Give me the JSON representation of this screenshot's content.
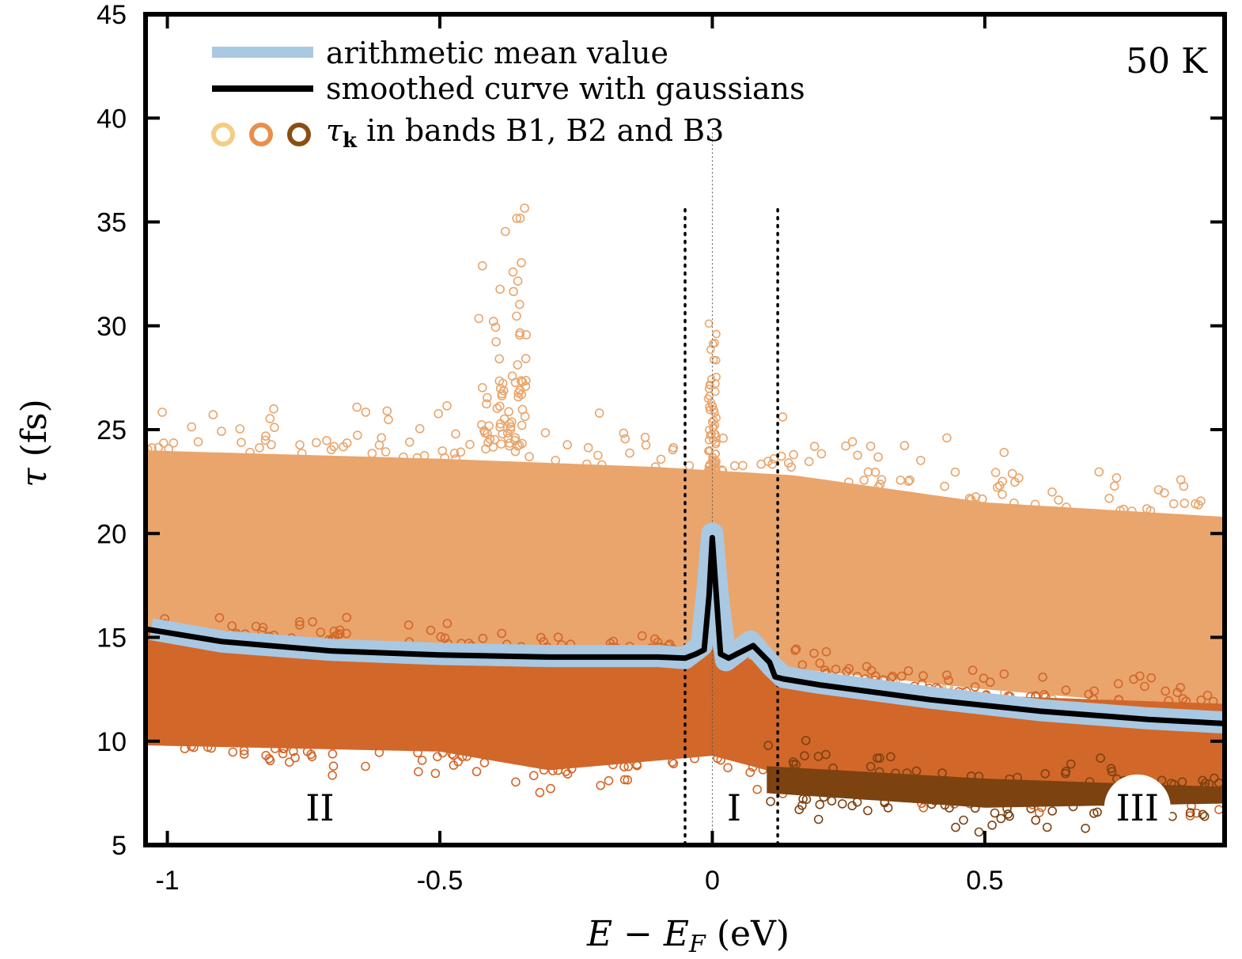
{
  "chart_data": {
    "type": "scatter",
    "title": "",
    "annotation_temperature": "50 K",
    "xlabel": "E − E",
    "xlabel_subscript": "F",
    "xlabel_unit": "(eV)",
    "ylabel": "τ",
    "ylabel_unit": "(fs)",
    "xlim": [
      -1.04,
      0.94
    ],
    "ylim": [
      5,
      45
    ],
    "xticks": [
      -1,
      -0.5,
      0,
      0.5
    ],
    "xtick_labels": [
      "-1",
      "-0.5",
      "0",
      "0.5"
    ],
    "yticks": [
      5,
      10,
      15,
      20,
      25,
      30,
      35,
      40,
      45
    ],
    "ytick_labels": [
      "5",
      "10",
      "15",
      "20",
      "25",
      "30",
      "35",
      "40",
      "45"
    ],
    "region_boundaries": [
      -0.05,
      0.12
    ],
    "fermi_line": 0,
    "regions": [
      {
        "label": "II",
        "x": -0.72,
        "y": 6.8
      },
      {
        "label": "I",
        "x": 0.04,
        "y": 6.8
      },
      {
        "label": "III",
        "x": 0.78,
        "y": 6.8
      }
    ],
    "legend": [
      {
        "key": "mean",
        "label": "arithmetic mean value",
        "color": "#a9c8e2"
      },
      {
        "key": "smooth",
        "label": "smoothed curve with gaussians",
        "color": "#000000"
      },
      {
        "key": "bands",
        "label_symbol": "τ",
        "label_sub": "k",
        "label": " in bands B1, B2 and B3",
        "colors": [
          "#f2cd82",
          "#e98f4d",
          "#8a4e12"
        ]
      }
    ],
    "series": [
      {
        "name": "τ_k band B1",
        "color": "#e9a56c",
        "band_upper": [
          [
            -1.04,
            24.0
          ],
          [
            -0.5,
            23.6
          ],
          [
            -0.1,
            23.2
          ],
          [
            0.15,
            22.8
          ],
          [
            0.5,
            21.5
          ],
          [
            0.94,
            20.8
          ]
        ],
        "band_lower": [
          [
            -1.04,
            14.8
          ],
          [
            -0.5,
            14.6
          ],
          [
            0.0,
            14.2
          ],
          [
            0.15,
            13.5
          ],
          [
            0.5,
            12.5
          ],
          [
            0.94,
            11.5
          ]
        ]
      },
      {
        "name": "τ_k band B2",
        "color": "#d2672a",
        "band_upper": [
          [
            -1.04,
            15.3
          ],
          [
            -0.5,
            14.6
          ],
          [
            0.0,
            14.4
          ],
          [
            0.15,
            13.4
          ],
          [
            0.5,
            12.2
          ],
          [
            0.94,
            11.8
          ]
        ],
        "band_lower": [
          [
            -1.04,
            9.8
          ],
          [
            -0.5,
            9.5
          ],
          [
            -0.3,
            8.6
          ],
          [
            0.0,
            9.3
          ],
          [
            0.1,
            8.6
          ],
          [
            0.5,
            7.6
          ],
          [
            0.94,
            7.4
          ]
        ]
      },
      {
        "name": "τ_k band B3",
        "color": "#7c4210",
        "band_upper": [
          [
            0.1,
            8.8
          ],
          [
            0.5,
            8.2
          ],
          [
            0.94,
            7.8
          ]
        ],
        "band_lower": [
          [
            0.1,
            7.5
          ],
          [
            0.5,
            6.8
          ],
          [
            0.94,
            7.0
          ]
        ]
      },
      {
        "name": "arithmetic mean value",
        "color": "#a9c8e2",
        "points": [
          [
            -1.03,
            15.4
          ],
          [
            -0.9,
            14.8
          ],
          [
            -0.7,
            14.4
          ],
          [
            -0.5,
            14.2
          ],
          [
            -0.3,
            14.1
          ],
          [
            -0.1,
            14.1
          ],
          [
            -0.05,
            14.0
          ],
          [
            -0.02,
            14.6
          ],
          [
            -0.008,
            17.5
          ],
          [
            0.0,
            20.0
          ],
          [
            0.01,
            17.0
          ],
          [
            0.025,
            13.9
          ],
          [
            0.05,
            14.4
          ],
          [
            0.07,
            14.8
          ],
          [
            0.09,
            14.2
          ],
          [
            0.11,
            13.6
          ],
          [
            0.13,
            13.1
          ],
          [
            0.2,
            12.8
          ],
          [
            0.4,
            12.1
          ],
          [
            0.6,
            11.5
          ],
          [
            0.8,
            11.1
          ],
          [
            0.94,
            10.9
          ]
        ]
      },
      {
        "name": "smoothed curve with gaussians",
        "color": "#000000",
        "points": [
          [
            -1.04,
            15.4
          ],
          [
            -0.9,
            14.8
          ],
          [
            -0.7,
            14.35
          ],
          [
            -0.5,
            14.15
          ],
          [
            -0.3,
            14.05
          ],
          [
            -0.1,
            14.05
          ],
          [
            -0.05,
            14.0
          ],
          [
            -0.03,
            14.2
          ],
          [
            -0.015,
            14.4
          ],
          [
            -0.006,
            17.0
          ],
          [
            0.0,
            19.8
          ],
          [
            0.006,
            17.5
          ],
          [
            0.015,
            14.2
          ],
          [
            0.03,
            14.0
          ],
          [
            0.045,
            14.2
          ],
          [
            0.06,
            14.4
          ],
          [
            0.075,
            14.6
          ],
          [
            0.09,
            14.2
          ],
          [
            0.105,
            13.8
          ],
          [
            0.115,
            13.1
          ],
          [
            0.13,
            13.0
          ],
          [
            0.2,
            12.7
          ],
          [
            0.4,
            12.0
          ],
          [
            0.6,
            11.45
          ],
          [
            0.8,
            11.05
          ],
          [
            0.94,
            10.85
          ]
        ]
      }
    ]
  }
}
